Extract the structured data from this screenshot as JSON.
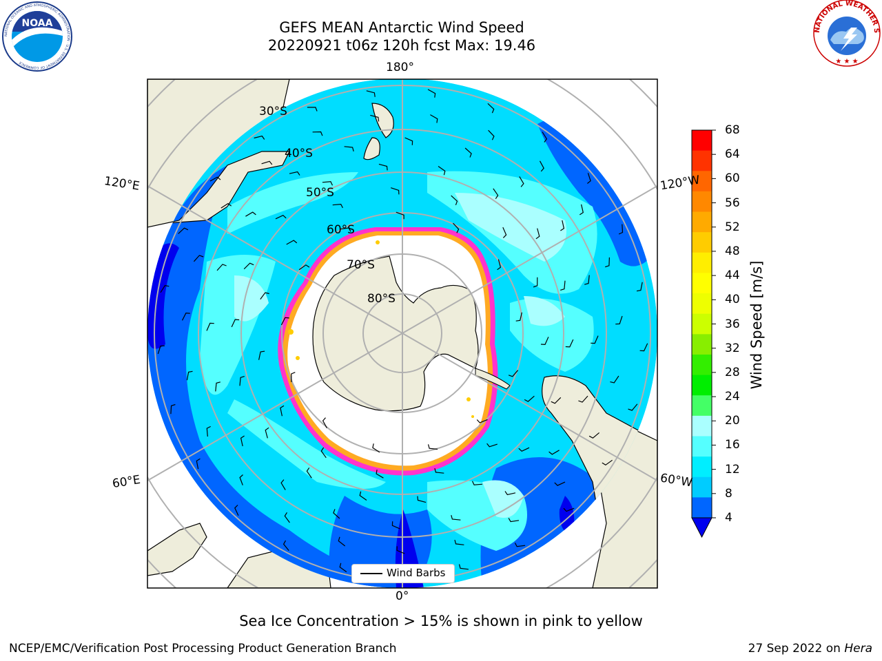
{
  "header": {
    "title_line1": "GEFS MEAN Antarctic Wind Speed",
    "title_line2": "20220921 t06z 120h fcst   Max: 19.46"
  },
  "logos": {
    "left": "NOAA",
    "left_ring_text": "NATIONAL OCEANIC AND ATMOSPHERIC ADMINISTRATION · U.S. DEPARTMENT OF COMMERCE",
    "right_ring_text": "NATIONAL WEATHER SERVICE"
  },
  "map": {
    "longitude_labels": {
      "top": "180°",
      "bottom": "0°",
      "upper_left": "120°E",
      "upper_right": "120°W",
      "lower_left": "60°E",
      "lower_right": "60°W"
    },
    "latitude_labels": [
      "30°S",
      "40°S",
      "50°S",
      "60°S",
      "70°S",
      "80°S"
    ],
    "legend": {
      "label": "Wind Barbs"
    },
    "colors": {
      "land": "#eeeddb",
      "ice": "#ffffff",
      "ice_edge": [
        "#ff33cc",
        "#ffaa22",
        "#ffdd00"
      ],
      "speed_4_8": "#0066ff",
      "speed_8_12": "#00ddff",
      "speed_12_16": "#55ffff",
      "speed_16_20": "#aaffff",
      "below_4": "#0000ee"
    }
  },
  "colorbar": {
    "label": "Wind Speed [m/s]",
    "ticks": [
      "68",
      "64",
      "60",
      "56",
      "52",
      "48",
      "44",
      "40",
      "36",
      "32",
      "28",
      "24",
      "20",
      "16",
      "12",
      "8",
      "4"
    ],
    "colors": [
      "#ff0000",
      "#ff3300",
      "#ff6600",
      "#ff8800",
      "#ffaa00",
      "#ffcc00",
      "#ffee00",
      "#ffff00",
      "#eeff00",
      "#ccff00",
      "#88ee00",
      "#33ee00",
      "#00ee00",
      "#44ff66",
      "#aaffff",
      "#55ffff",
      "#00eeff",
      "#00ccff",
      "#0066ff"
    ],
    "under_color": "#0000ee"
  },
  "footer": {
    "note": "Sea Ice Concentration > 15% is shown in pink to yellow",
    "credit": "NCEP/EMC/Verification Post Processing Product Generation Branch",
    "date": "27 Sep 2022 on",
    "machine": "Hera"
  }
}
